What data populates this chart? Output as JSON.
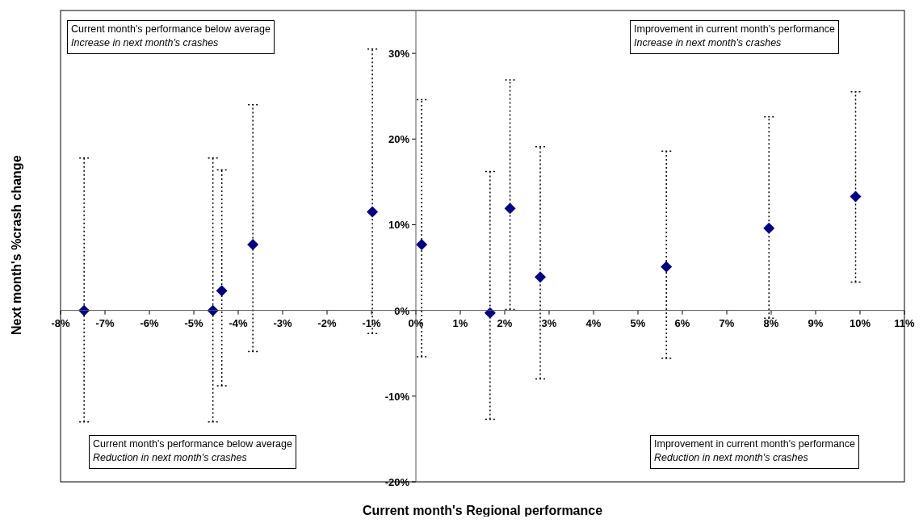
{
  "chart_data": {
    "type": "scatter",
    "xlabel": "Current month's Regional performance",
    "ylabel": "Next month's %crash change",
    "series": [
      {
        "color": "#000080",
        "x": [
          -7.47,
          -4.57,
          -4.37,
          -3.67,
          -0.98,
          0.13,
          1.67,
          2.12,
          2.8,
          5.64,
          7.95,
          9.9
        ],
        "values": [
          0,
          0,
          2.3,
          7.7,
          11.5,
          7.7,
          -0.3,
          11.9,
          3.9,
          5.1,
          9.6,
          13.3
        ],
        "errors": [
          [
            -13,
            17.8
          ],
          [
            -13,
            17.8
          ],
          [
            -8.8,
            16.4
          ],
          [
            -4.8,
            24
          ],
          [
            -2.7,
            30.5
          ],
          [
            -5.4,
            24.6
          ],
          [
            -12.7,
            16.2
          ],
          [
            0.1,
            26.9
          ],
          [
            -8,
            19.1
          ],
          [
            -5.6,
            18.6
          ],
          [
            -0.9,
            22.6
          ],
          [
            3.3,
            25.5
          ]
        ]
      }
    ],
    "xlim": [
      -8,
      11
    ],
    "xticks": [
      {
        "value": -8,
        "label": "-8%"
      },
      {
        "value": -7,
        "label": "-7%"
      },
      {
        "value": -6,
        "label": "-6%"
      },
      {
        "value": -5,
        "label": "-5%"
      },
      {
        "value": -4,
        "label": "-4%"
      },
      {
        "value": -3,
        "label": "-3%"
      },
      {
        "value": -2,
        "label": "-2%"
      },
      {
        "value": -1,
        "label": "-1%"
      },
      {
        "value": 0,
        "label": "0%"
      },
      {
        "value": 1,
        "label": "1%"
      },
      {
        "value": 2,
        "label": "2%"
      },
      {
        "value": 3,
        "label": "3%"
      },
      {
        "value": 4,
        "label": "4%"
      },
      {
        "value": 5,
        "label": "5%"
      },
      {
        "value": 6,
        "label": "6%"
      },
      {
        "value": 7,
        "label": "7%"
      },
      {
        "value": 8,
        "label": "8%"
      },
      {
        "value": 9,
        "label": "9%"
      },
      {
        "value": 10,
        "label": "10%"
      },
      {
        "value": 11,
        "label": "11%"
      }
    ],
    "ylim": [
      -20,
      35
    ],
    "yticks": [
      {
        "value": -20,
        "label": "-20%"
      },
      {
        "value": -10,
        "label": "-10%"
      },
      {
        "value": 0,
        "label": "0%"
      },
      {
        "value": 10,
        "label": "10%"
      },
      {
        "value": 20,
        "label": "20%"
      },
      {
        "value": 30,
        "label": "30%"
      }
    ],
    "marker": "diamond",
    "grid": false,
    "annotations": [
      "Current month's performance below average\nIncrease in next month's crashes",
      "Improvement in current month's performance\nIncrease in next month's crashes",
      "Current month's performance below average\nReduction in next month's crashes",
      "Improvement in current month's performance\nReduction in next month's crashes"
    ]
  }
}
